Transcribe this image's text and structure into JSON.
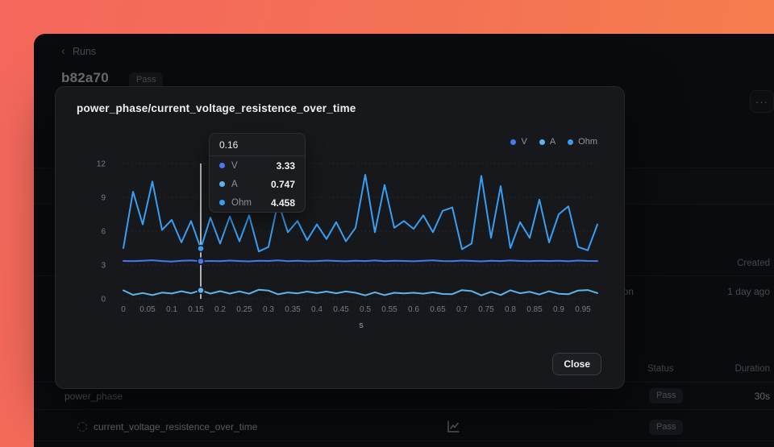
{
  "window": {
    "breadcrumb": {
      "back_icon": "‹",
      "label": "Runs"
    },
    "run": {
      "id": "b82a70",
      "status_badge": "Pass"
    },
    "more_icon": "···",
    "created_section": {
      "created_header": "Created",
      "clipped_row_name": "ion",
      "created_value": "1 day ago"
    },
    "results_table": {
      "status_header": "Status",
      "duration_header": "Duration",
      "rows": [
        {
          "name": "power_phase",
          "status": "Pass",
          "duration": "30s"
        },
        {
          "name": "current_voltage_resistence_over_time",
          "status": "Pass"
        }
      ]
    }
  },
  "modal": {
    "title": "power_phase/current_voltage_resistence_over_time",
    "close_label": "Close",
    "legend": [
      {
        "label": "V",
        "color": "#4479f2"
      },
      {
        "label": "A",
        "color": "#5fb3ec"
      },
      {
        "label": "Ohm",
        "color": "#389ef2"
      }
    ],
    "tooltip": {
      "header": "0.16",
      "rows": [
        {
          "label": "V",
          "value": "3.33",
          "color": "#4479f2"
        },
        {
          "label": "A",
          "value": "0.747",
          "color": "#5fb3ec"
        },
        {
          "label": "Ohm",
          "value": "4.458",
          "color": "#389ef2"
        }
      ]
    }
  },
  "chart_data": {
    "type": "line",
    "title": "power_phase/current_voltage_resistence_over_time",
    "xlabel": "s",
    "ylabel": "",
    "ylim": [
      0,
      12
    ],
    "yticks": [
      0,
      3,
      6,
      9,
      12
    ],
    "xticks": [
      "0",
      "0.05",
      "0.1",
      "0.15",
      "0.2",
      "0.25",
      "0.3",
      "0.35",
      "0.4",
      "0.45",
      "0.5",
      "0.55",
      "0.6",
      "0.65",
      "0.7",
      "0.75",
      "0.8",
      "0.85",
      "0.9",
      "0.95"
    ],
    "grid": "horizontal-dotted",
    "legend_position": "top-right",
    "hover": {
      "x": 0.16,
      "index": 8,
      "values": {
        "V": 3.33,
        "A": 0.747,
        "Ohm": 4.458
      }
    },
    "x": [
      0,
      0.02,
      0.04,
      0.06,
      0.08,
      0.1,
      0.12,
      0.14,
      0.16,
      0.18,
      0.2,
      0.22,
      0.24,
      0.26,
      0.28,
      0.3,
      0.32,
      0.34,
      0.36,
      0.38,
      0.4,
      0.42,
      0.44,
      0.46,
      0.48,
      0.5,
      0.52,
      0.54,
      0.56,
      0.58,
      0.6,
      0.62,
      0.64,
      0.66,
      0.68,
      0.7,
      0.72,
      0.74,
      0.76,
      0.78,
      0.8,
      0.82,
      0.84,
      0.86,
      0.88,
      0.9,
      0.92,
      0.94,
      0.96,
      0.98
    ],
    "series": [
      {
        "name": "V",
        "color": "#4479f2",
        "values": [
          3.36,
          3.34,
          3.38,
          3.42,
          3.35,
          3.31,
          3.37,
          3.4,
          3.33,
          3.36,
          3.34,
          3.39,
          3.35,
          3.32,
          3.38,
          3.36,
          3.41,
          3.34,
          3.37,
          3.33,
          3.35,
          3.39,
          3.36,
          3.33,
          3.38,
          3.35,
          3.4,
          3.34,
          3.37,
          3.36,
          3.33,
          3.38,
          3.41,
          3.35,
          3.34,
          3.39,
          3.36,
          3.32,
          3.37,
          3.35,
          3.4,
          3.36,
          3.34,
          3.38,
          3.35,
          3.37,
          3.33,
          3.39,
          3.36,
          3.35
        ]
      },
      {
        "name": "A",
        "color": "#5fb3ec",
        "values": [
          0.747,
          0.352,
          0.512,
          0.329,
          0.549,
          0.473,
          0.674,
          0.493,
          0.747,
          0.467,
          0.682,
          0.464,
          0.657,
          0.449,
          0.805,
          0.73,
          0.397,
          0.566,
          0.488,
          0.64,
          0.508,
          0.64,
          0.494,
          0.653,
          0.537,
          0.305,
          0.576,
          0.331,
          0.535,
          0.487,
          0.537,
          0.457,
          0.578,
          0.429,
          0.412,
          0.77,
          0.686,
          0.305,
          0.624,
          0.335,
          0.756,
          0.494,
          0.619,
          0.384,
          0.67,
          0.449,
          0.406,
          0.737,
          0.781,
          0.508
        ]
      },
      {
        "name": "Ohm",
        "color": "#389ef2",
        "values": [
          4.5,
          9.5,
          6.6,
          10.4,
          6.1,
          7.0,
          5.0,
          6.9,
          4.458,
          7.2,
          4.9,
          7.3,
          5.1,
          7.4,
          4.2,
          4.6,
          8.6,
          5.9,
          6.9,
          5.2,
          6.6,
          5.3,
          6.8,
          5.1,
          6.3,
          11.0,
          5.9,
          10.1,
          6.3,
          6.9,
          6.2,
          7.4,
          5.9,
          7.8,
          8.1,
          4.4,
          4.9,
          10.9,
          5.4,
          10.0,
          4.5,
          6.8,
          5.4,
          8.8,
          5.0,
          7.5,
          8.2,
          4.6,
          4.3,
          6.6
        ]
      }
    ]
  }
}
